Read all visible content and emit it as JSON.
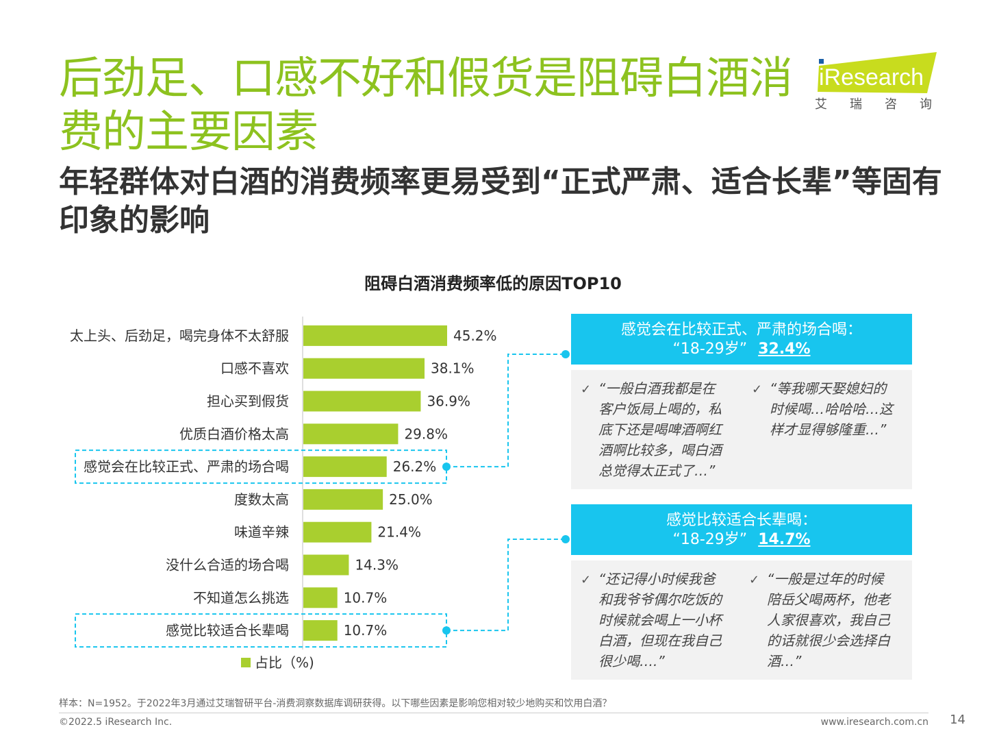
{
  "title": "后劲足、口感不好和假货是阻碍白酒消费的主要因素",
  "subtitle": "年轻群体对白酒的消费频率更易受到“正式严肃、适合长辈”等固有印象的影响",
  "logo": {
    "text": "iResearch",
    "cn": "艾瑞咨询"
  },
  "chart_title": "阻碍白酒消费频率低的原因TOP10",
  "chart_data": {
    "type": "bar",
    "orientation": "horizontal",
    "title": "阻碍白酒消费频率低的原因TOP10",
    "categories": [
      "太上头、后劲足，喝完身体不太舒服",
      "口感不喜欢",
      "担心买到假货",
      "优质白酒价格太高",
      "感觉会在比较正式、严肃的场合喝",
      "度数太高",
      "味道辛辣",
      "没什么合适的场合喝",
      "不知道怎么挑选",
      "感觉比较适合长辈喝"
    ],
    "series": [
      {
        "name": "占比（%)",
        "values": [
          45.2,
          38.1,
          36.9,
          29.8,
          26.2,
          25.0,
          21.4,
          14.3,
          10.7,
          10.7
        ]
      }
    ],
    "value_labels": [
      "45.2%",
      "38.1%",
      "36.9%",
      "29.8%",
      "26.2%",
      "25.0%",
      "21.4%",
      "14.3%",
      "10.7%",
      "10.7%"
    ],
    "highlighted": [
      4,
      9
    ],
    "color": "#a9cf2f",
    "legend_position": "bottom-left",
    "grid": false
  },
  "callouts": [
    {
      "header_line1": "感觉会在比较正式、严肃的场合喝：",
      "header_line2": "“18-29岁”",
      "percent": "32.4%",
      "quotes": [
        "“一般白酒我都是在\n客户饭局上喝的，私\n底下还是喝啤酒啊红\n酒啊比较多，喝白酒\n总觉得太正式了…”",
        "“等我哪天娶媳妇的\n时候喝…哈哈哈…这\n样才显得够隆重…”"
      ]
    },
    {
      "header_line1": "感觉比较适合长辈喝：",
      "header_line2": "“18-29岁”",
      "percent": "14.7%",
      "quotes": [
        "“还记得小时候我爸\n和我爷爷偶尔吃饭的\n时候就会喝上一小杯\n白酒，但现在我自己\n很少喝….”",
        "“一般是过年的时候\n陪岳父喝两杯，他老\n人家很喜欢，我自己\n的话就很少会选择白\n酒…”"
      ]
    }
  ],
  "check_mark": "✓",
  "footnote": "样本：N=1952。于2022年3月通过艾瑞智研平台-消费洞察数据库调研获得。以下哪些因素是影响您相对较少地购买和饮用白酒？",
  "copyright": "©2022.5 iResearch Inc.",
  "url": "www.iresearch.com.cn",
  "page_number": "14",
  "colors": {
    "title_green": "#8dc21f",
    "bar_green": "#a9cf2f",
    "accent_blue": "#18c5ee",
    "quote_bg": "#f2f2f2"
  }
}
